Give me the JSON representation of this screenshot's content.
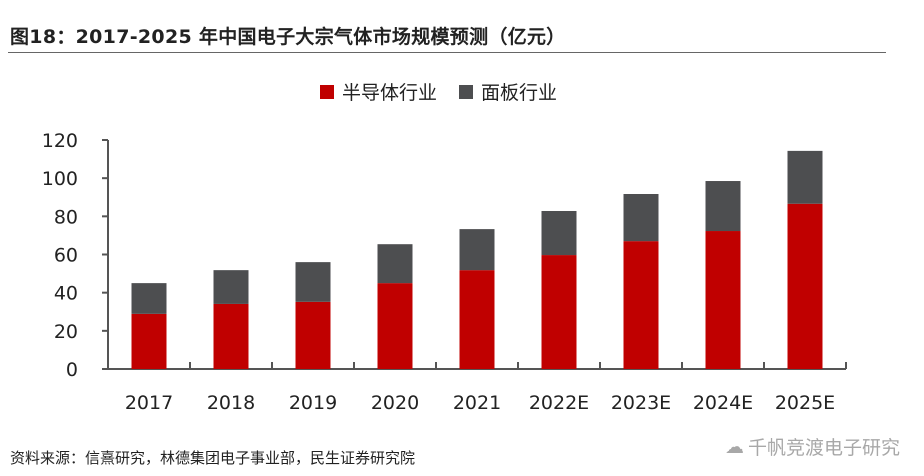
{
  "title": "图18：2017-2025 年中国电子大宗气体市场规模预测（亿元）",
  "source": "资料来源：信熹研究，林德集团电子事业部，民生证券研究院",
  "watermark": "千帆竞渡电子研究",
  "chart_data": {
    "type": "bar",
    "stacked": true,
    "title": "",
    "xlabel": "",
    "ylabel": "",
    "ylim": [
      0,
      120
    ],
    "yticks": [
      0,
      20,
      40,
      60,
      80,
      100,
      120
    ],
    "grid": false,
    "legend_position": "top",
    "categories": [
      "2017",
      "2018",
      "2019",
      "2020",
      "2021",
      "2022E",
      "2023E",
      "2024E",
      "2025E"
    ],
    "series": [
      {
        "name": "半导体行业",
        "color": "#C00000",
        "values": [
          28.9,
          34.1,
          35.2,
          45.0,
          51.8,
          59.7,
          67.0,
          72.3,
          86.6
        ]
      },
      {
        "name": "面板行业",
        "color": "#4D4E50",
        "values": [
          16.1,
          17.7,
          20.8,
          20.4,
          21.5,
          23.1,
          24.7,
          26.2,
          27.7
        ]
      }
    ]
  }
}
